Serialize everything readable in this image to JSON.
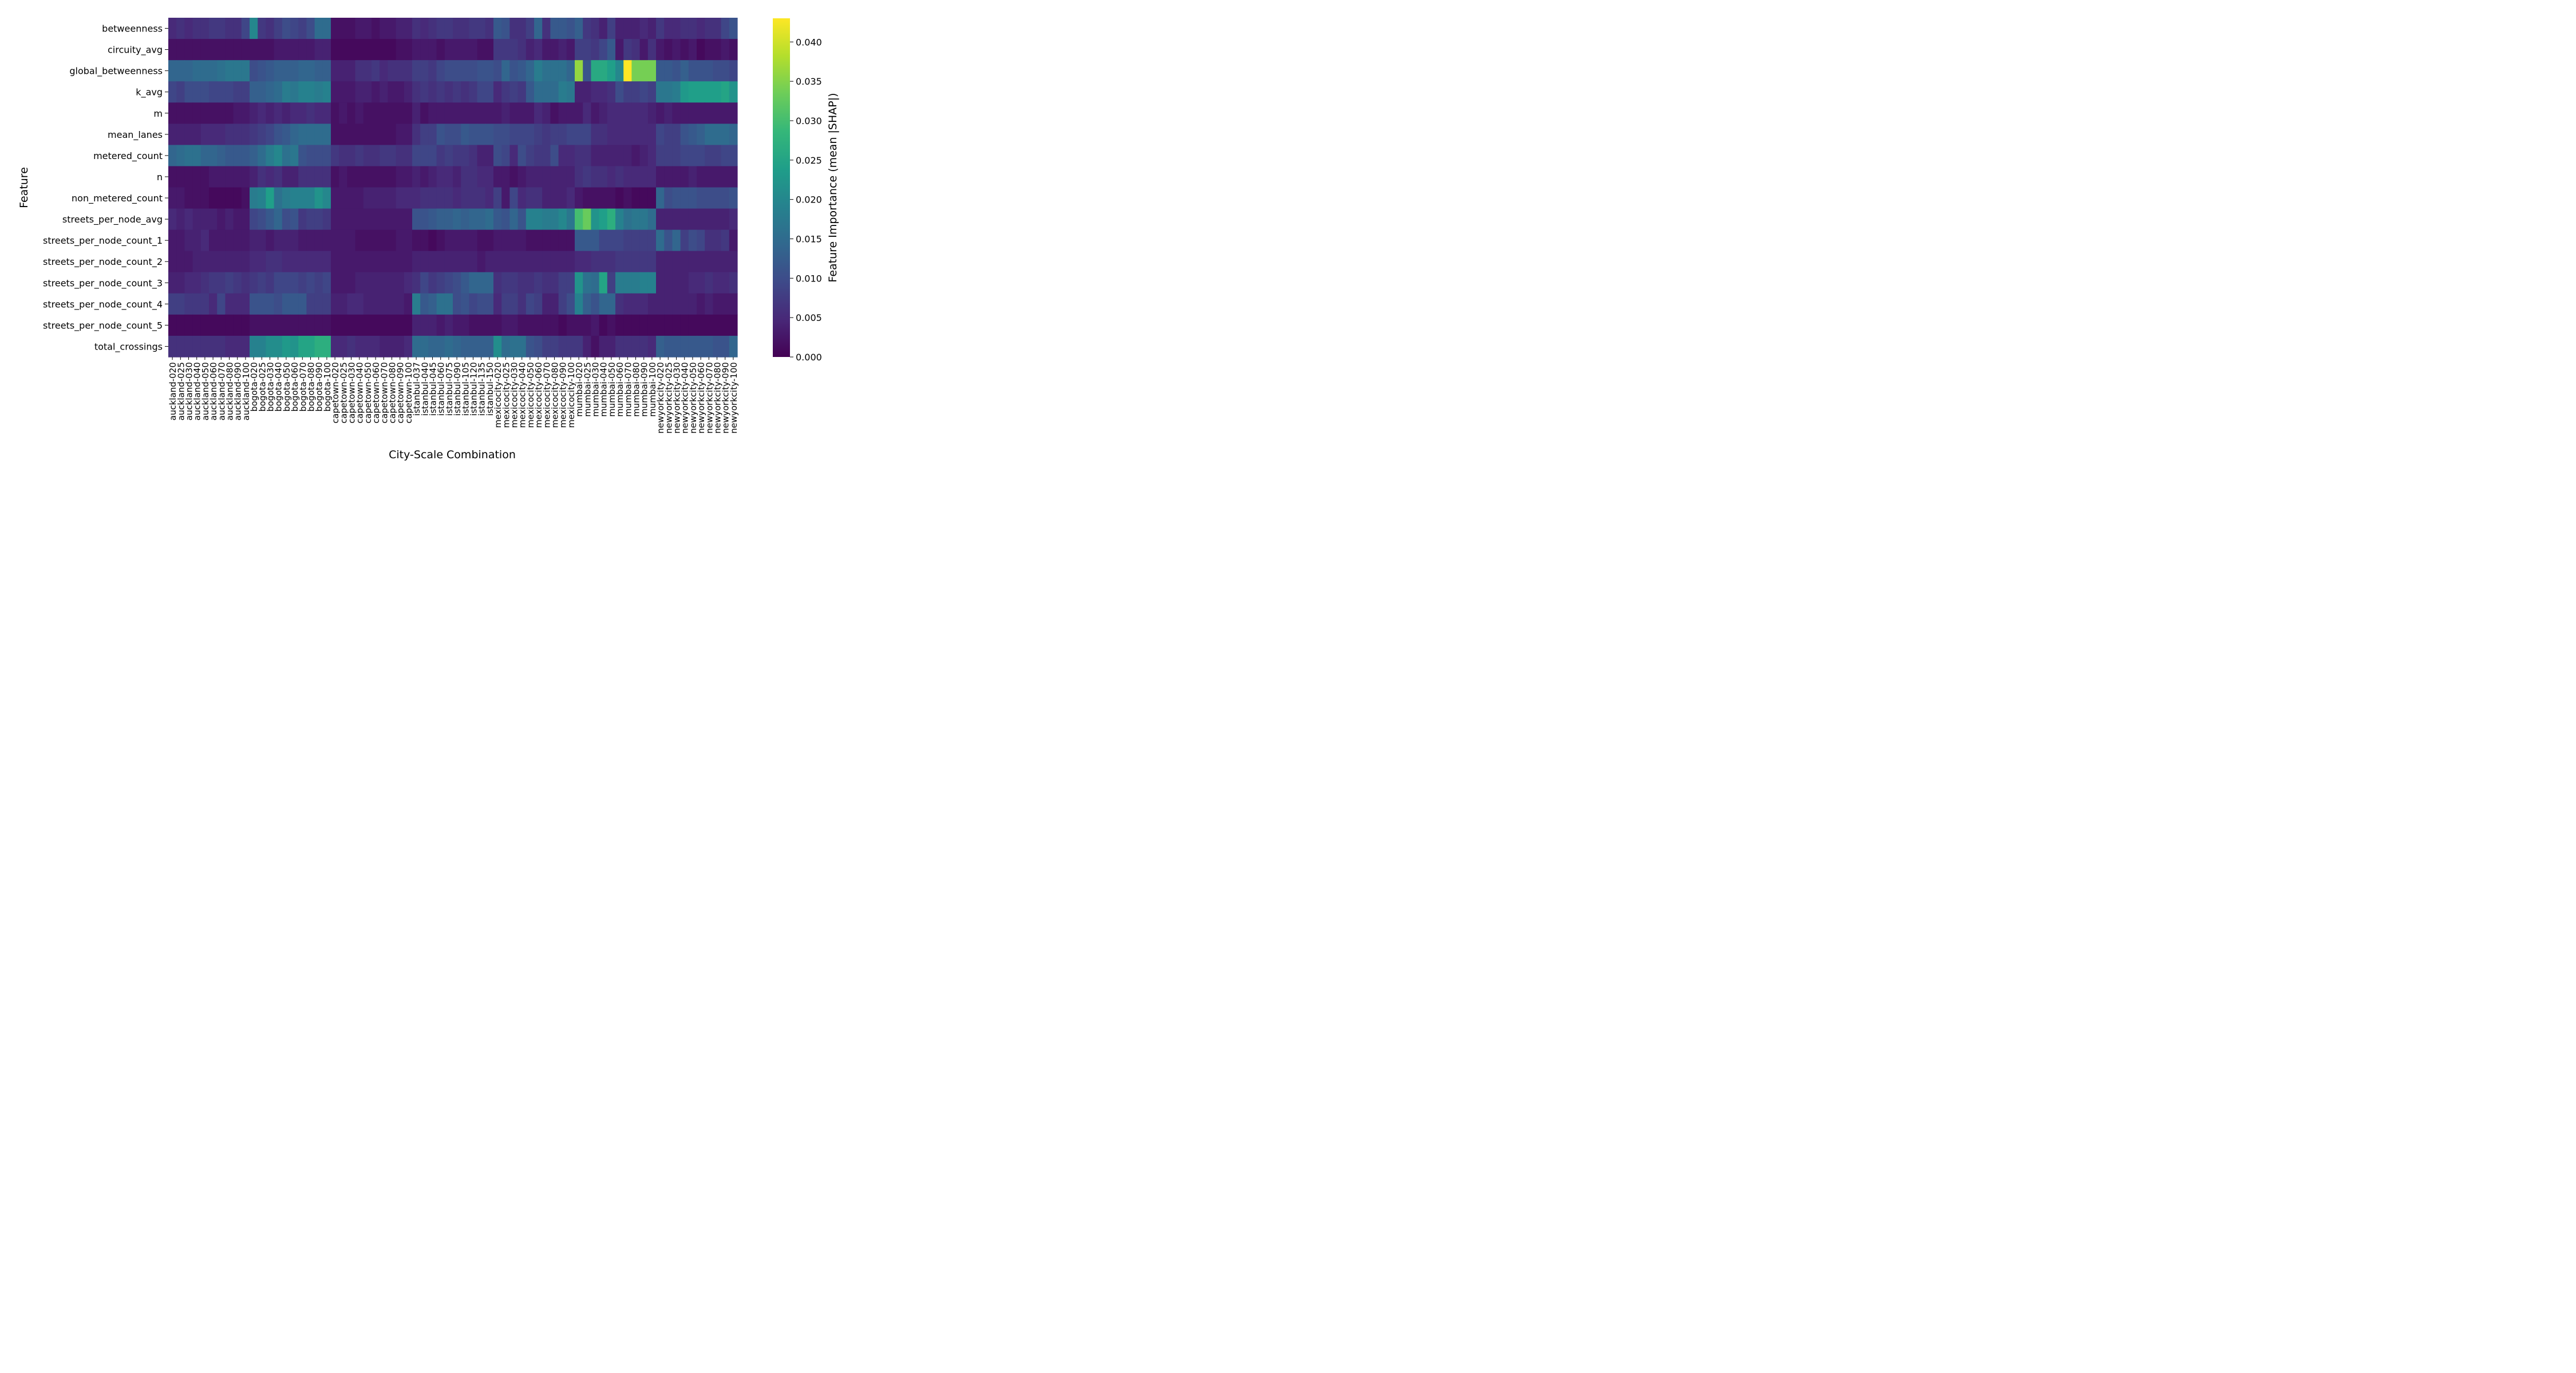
{
  "chart_data": {
    "type": "heatmap",
    "title": "",
    "xlabel": "City-Scale Combination",
    "ylabel": "Feature",
    "colorbar_label": "Feature Importance (mean |SHAP|)",
    "colormap": "viridis",
    "vmin": 0.0,
    "vmax": 0.043,
    "colorbar_ticks": [
      "0.000",
      "0.005",
      "0.010",
      "0.015",
      "0.020",
      "0.025",
      "0.030",
      "0.035",
      "0.040"
    ],
    "rows": [
      "betweenness",
      "circuity_avg",
      "global_betweenness",
      "k_avg",
      "m",
      "mean_lanes",
      "metered_count",
      "n",
      "non_metered_count",
      "streets_per_node_avg",
      "streets_per_node_count_1",
      "streets_per_node_count_2",
      "streets_per_node_count_3",
      "streets_per_node_count_4",
      "streets_per_node_count_5",
      "total_crossings"
    ],
    "columns": [
      "auckland-020",
      "auckland-025",
      "auckland-030",
      "auckland-040",
      "auckland-050",
      "auckland-060",
      "auckland-070",
      "auckland-080",
      "auckland-090",
      "auckland-100",
      "bogota-020",
      "bogota-025",
      "bogota-030",
      "bogota-040",
      "bogota-050",
      "bogota-060",
      "bogota-070",
      "bogota-080",
      "bogota-090",
      "bogota-100",
      "capetown-020",
      "capetown-025",
      "capetown-030",
      "capetown-040",
      "capetown-050",
      "capetown-060",
      "capetown-070",
      "capetown-080",
      "capetown-090",
      "capetown-100",
      "istanbul-037",
      "istanbul-040",
      "istanbul-045",
      "istanbul-060",
      "istanbul-075",
      "istanbul-090",
      "istanbul-105",
      "istanbul-120",
      "istanbul-135",
      "istanbul-150",
      "mexicocity-020",
      "mexicocity-025",
      "mexicocity-030",
      "mexicocity-040",
      "mexicocity-050",
      "mexicocity-060",
      "mexicocity-070",
      "mexicocity-080",
      "mexicocity-090",
      "mexicocity-100",
      "mumbai-020",
      "mumbai-025",
      "mumbai-030",
      "mumbai-040",
      "mumbai-050",
      "mumbai-060",
      "mumbai-070",
      "mumbai-080",
      "mumbai-090",
      "mumbai-100",
      "newyorkcity-020",
      "newyorkcity-025",
      "newyorkcity-030",
      "newyorkcity-040",
      "newyorkcity-050",
      "newyorkcity-060",
      "newyorkcity-070",
      "newyorkcity-080",
      "newyorkcity-090",
      "newyorkcity-100"
    ],
    "values": [
      [
        0.005,
        0.006,
        0.005,
        0.006,
        0.006,
        0.007,
        0.007,
        0.006,
        0.006,
        0.009,
        0.02,
        0.007,
        0.006,
        0.008,
        0.01,
        0.009,
        0.008,
        0.01,
        0.015,
        0.015,
        0.002,
        0.002,
        0.002,
        0.003,
        0.003,
        0.002,
        0.003,
        0.003,
        0.004,
        0.004,
        0.006,
        0.005,
        0.006,
        0.007,
        0.007,
        0.006,
        0.006,
        0.007,
        0.007,
        0.006,
        0.012,
        0.011,
        0.006,
        0.006,
        0.008,
        0.014,
        0.006,
        0.012,
        0.012,
        0.011,
        0.013,
        0.007,
        0.006,
        0.004,
        0.008,
        0.004,
        0.004,
        0.004,
        0.005,
        0.004,
        0.007,
        0.005,
        0.005,
        0.006,
        0.006,
        0.005,
        0.006,
        0.006,
        0.009,
        0.011
      ],
      [
        0.002,
        0.002,
        0.002,
        0.002,
        0.002,
        0.002,
        0.002,
        0.002,
        0.002,
        0.002,
        0.002,
        0.002,
        0.002,
        0.003,
        0.003,
        0.003,
        0.003,
        0.003,
        0.004,
        0.004,
        0.001,
        0.001,
        0.001,
        0.001,
        0.001,
        0.001,
        0.001,
        0.001,
        0.002,
        0.002,
        0.003,
        0.003,
        0.003,
        0.002,
        0.003,
        0.003,
        0.003,
        0.003,
        0.002,
        0.002,
        0.007,
        0.007,
        0.007,
        0.006,
        0.004,
        0.005,
        0.003,
        0.003,
        0.004,
        0.003,
        0.008,
        0.008,
        0.007,
        0.009,
        0.012,
        0.003,
        0.007,
        0.006,
        0.003,
        0.006,
        0.003,
        0.002,
        0.003,
        0.002,
        0.003,
        0.001,
        0.002,
        0.002,
        0.003,
        0.002
      ],
      [
        0.014,
        0.014,
        0.014,
        0.015,
        0.015,
        0.015,
        0.016,
        0.017,
        0.017,
        0.017,
        0.01,
        0.011,
        0.012,
        0.013,
        0.013,
        0.013,
        0.014,
        0.014,
        0.013,
        0.013,
        0.004,
        0.004,
        0.004,
        0.006,
        0.006,
        0.007,
        0.005,
        0.006,
        0.006,
        0.006,
        0.008,
        0.008,
        0.007,
        0.009,
        0.01,
        0.01,
        0.01,
        0.01,
        0.011,
        0.011,
        0.01,
        0.014,
        0.011,
        0.012,
        0.014,
        0.018,
        0.016,
        0.016,
        0.016,
        0.014,
        0.036,
        0.011,
        0.026,
        0.026,
        0.024,
        0.02,
        0.043,
        0.034,
        0.034,
        0.034,
        0.012,
        0.012,
        0.011,
        0.013,
        0.011,
        0.011,
        0.011,
        0.01,
        0.01,
        0.009
      ],
      [
        0.009,
        0.008,
        0.01,
        0.01,
        0.01,
        0.009,
        0.009,
        0.009,
        0.008,
        0.008,
        0.013,
        0.013,
        0.014,
        0.015,
        0.018,
        0.017,
        0.019,
        0.019,
        0.018,
        0.019,
        0.003,
        0.003,
        0.003,
        0.004,
        0.004,
        0.003,
        0.004,
        0.003,
        0.003,
        0.004,
        0.006,
        0.007,
        0.006,
        0.007,
        0.006,
        0.007,
        0.006,
        0.007,
        0.009,
        0.009,
        0.005,
        0.007,
        0.008,
        0.007,
        0.012,
        0.015,
        0.015,
        0.015,
        0.018,
        0.017,
        0.004,
        0.004,
        0.005,
        0.005,
        0.006,
        0.01,
        0.008,
        0.008,
        0.009,
        0.008,
        0.017,
        0.017,
        0.018,
        0.023,
        0.024,
        0.024,
        0.024,
        0.024,
        0.025,
        0.022
      ],
      [
        0.002,
        0.002,
        0.002,
        0.002,
        0.002,
        0.002,
        0.002,
        0.002,
        0.003,
        0.003,
        0.004,
        0.005,
        0.004,
        0.005,
        0.004,
        0.005,
        0.005,
        0.006,
        0.005,
        0.005,
        0.002,
        0.003,
        0.002,
        0.003,
        0.002,
        0.002,
        0.002,
        0.002,
        0.002,
        0.002,
        0.004,
        0.002,
        0.003,
        0.003,
        0.003,
        0.003,
        0.003,
        0.003,
        0.003,
        0.003,
        0.003,
        0.004,
        0.003,
        0.003,
        0.003,
        0.005,
        0.004,
        0.002,
        0.003,
        0.003,
        0.003,
        0.005,
        0.003,
        0.004,
        0.005,
        0.005,
        0.005,
        0.005,
        0.005,
        0.004,
        0.003,
        0.004,
        0.003,
        0.003,
        0.003,
        0.003,
        0.003,
        0.003,
        0.003,
        0.003
      ],
      [
        0.004,
        0.004,
        0.004,
        0.004,
        0.005,
        0.005,
        0.005,
        0.006,
        0.006,
        0.006,
        0.007,
        0.008,
        0.009,
        0.011,
        0.012,
        0.014,
        0.015,
        0.015,
        0.015,
        0.015,
        0.002,
        0.002,
        0.002,
        0.002,
        0.002,
        0.002,
        0.002,
        0.002,
        0.003,
        0.003,
        0.006,
        0.008,
        0.008,
        0.011,
        0.01,
        0.01,
        0.012,
        0.011,
        0.011,
        0.011,
        0.01,
        0.01,
        0.009,
        0.009,
        0.009,
        0.008,
        0.007,
        0.008,
        0.008,
        0.009,
        0.009,
        0.009,
        0.006,
        0.006,
        0.005,
        0.005,
        0.005,
        0.005,
        0.005,
        0.005,
        0.009,
        0.008,
        0.008,
        0.011,
        0.012,
        0.013,
        0.015,
        0.015,
        0.015,
        0.014
      ],
      [
        0.014,
        0.015,
        0.016,
        0.016,
        0.014,
        0.014,
        0.013,
        0.012,
        0.012,
        0.012,
        0.013,
        0.015,
        0.018,
        0.02,
        0.016,
        0.017,
        0.011,
        0.01,
        0.01,
        0.01,
        0.007,
        0.006,
        0.006,
        0.007,
        0.006,
        0.006,
        0.007,
        0.007,
        0.006,
        0.006,
        0.009,
        0.009,
        0.009,
        0.007,
        0.008,
        0.007,
        0.007,
        0.006,
        0.004,
        0.004,
        0.01,
        0.009,
        0.005,
        0.01,
        0.008,
        0.007,
        0.007,
        0.01,
        0.005,
        0.005,
        0.006,
        0.006,
        0.004,
        0.004,
        0.004,
        0.004,
        0.004,
        0.003,
        0.004,
        0.005,
        0.008,
        0.008,
        0.008,
        0.009,
        0.009,
        0.009,
        0.008,
        0.008,
        0.009,
        0.009
      ],
      [
        0.002,
        0.002,
        0.002,
        0.002,
        0.002,
        0.003,
        0.003,
        0.003,
        0.003,
        0.003,
        0.004,
        0.006,
        0.005,
        0.006,
        0.004,
        0.004,
        0.006,
        0.006,
        0.006,
        0.006,
        0.002,
        0.003,
        0.002,
        0.002,
        0.002,
        0.002,
        0.002,
        0.002,
        0.003,
        0.003,
        0.004,
        0.003,
        0.004,
        0.005,
        0.005,
        0.004,
        0.006,
        0.006,
        0.005,
        0.005,
        0.003,
        0.003,
        0.002,
        0.003,
        0.004,
        0.004,
        0.004,
        0.004,
        0.004,
        0.004,
        0.006,
        0.007,
        0.006,
        0.006,
        0.005,
        0.006,
        0.005,
        0.005,
        0.005,
        0.005,
        0.003,
        0.003,
        0.003,
        0.003,
        0.004,
        0.003,
        0.003,
        0.003,
        0.003,
        0.003
      ],
      [
        0.003,
        0.003,
        0.002,
        0.002,
        0.002,
        0.001,
        0.001,
        0.001,
        0.001,
        0.002,
        0.018,
        0.019,
        0.024,
        0.016,
        0.018,
        0.019,
        0.019,
        0.019,
        0.022,
        0.02,
        0.003,
        0.003,
        0.003,
        0.003,
        0.004,
        0.004,
        0.004,
        0.004,
        0.005,
        0.005,
        0.005,
        0.006,
        0.006,
        0.006,
        0.006,
        0.005,
        0.006,
        0.006,
        0.006,
        0.005,
        0.008,
        0.003,
        0.009,
        0.005,
        0.006,
        0.006,
        0.004,
        0.004,
        0.004,
        0.005,
        0.003,
        0.002,
        0.002,
        0.002,
        0.002,
        0.001,
        0.002,
        0.001,
        0.001,
        0.001,
        0.014,
        0.01,
        0.011,
        0.011,
        0.011,
        0.01,
        0.01,
        0.01,
        0.01,
        0.011
      ],
      [
        0.005,
        0.004,
        0.005,
        0.004,
        0.004,
        0.004,
        0.003,
        0.004,
        0.003,
        0.003,
        0.009,
        0.01,
        0.012,
        0.014,
        0.01,
        0.011,
        0.007,
        0.008,
        0.008,
        0.007,
        0.003,
        0.003,
        0.003,
        0.003,
        0.003,
        0.003,
        0.003,
        0.003,
        0.003,
        0.003,
        0.011,
        0.011,
        0.012,
        0.013,
        0.013,
        0.014,
        0.013,
        0.014,
        0.014,
        0.015,
        0.012,
        0.011,
        0.014,
        0.011,
        0.019,
        0.019,
        0.018,
        0.018,
        0.02,
        0.017,
        0.03,
        0.033,
        0.022,
        0.024,
        0.027,
        0.019,
        0.016,
        0.017,
        0.017,
        0.015,
        0.004,
        0.004,
        0.004,
        0.004,
        0.004,
        0.004,
        0.004,
        0.004,
        0.004,
        0.005
      ],
      [
        0.003,
        0.003,
        0.004,
        0.004,
        0.005,
        0.003,
        0.003,
        0.003,
        0.003,
        0.003,
        0.004,
        0.004,
        0.003,
        0.004,
        0.004,
        0.004,
        0.003,
        0.003,
        0.003,
        0.003,
        0.003,
        0.003,
        0.003,
        0.002,
        0.002,
        0.002,
        0.002,
        0.002,
        0.003,
        0.003,
        0.002,
        0.002,
        0.001,
        0.002,
        0.003,
        0.003,
        0.003,
        0.003,
        0.002,
        0.002,
        0.003,
        0.003,
        0.003,
        0.003,
        0.002,
        0.002,
        0.002,
        0.002,
        0.002,
        0.002,
        0.012,
        0.012,
        0.012,
        0.009,
        0.009,
        0.009,
        0.008,
        0.008,
        0.008,
        0.008,
        0.015,
        0.011,
        0.014,
        0.008,
        0.01,
        0.009,
        0.006,
        0.006,
        0.007,
        0.003
      ],
      [
        0.003,
        0.003,
        0.003,
        0.004,
        0.004,
        0.004,
        0.004,
        0.004,
        0.004,
        0.004,
        0.005,
        0.005,
        0.006,
        0.006,
        0.005,
        0.005,
        0.005,
        0.005,
        0.005,
        0.005,
        0.003,
        0.003,
        0.003,
        0.003,
        0.003,
        0.003,
        0.003,
        0.003,
        0.003,
        0.003,
        0.004,
        0.004,
        0.004,
        0.004,
        0.004,
        0.004,
        0.004,
        0.004,
        0.003,
        0.004,
        0.004,
        0.004,
        0.004,
        0.004,
        0.004,
        0.004,
        0.004,
        0.004,
        0.004,
        0.004,
        0.005,
        0.005,
        0.006,
        0.006,
        0.006,
        0.007,
        0.007,
        0.007,
        0.007,
        0.007,
        0.004,
        0.004,
        0.004,
        0.004,
        0.004,
        0.004,
        0.004,
        0.004,
        0.004,
        0.004
      ],
      [
        0.004,
        0.004,
        0.005,
        0.005,
        0.006,
        0.007,
        0.007,
        0.008,
        0.007,
        0.006,
        0.007,
        0.008,
        0.007,
        0.009,
        0.009,
        0.009,
        0.008,
        0.009,
        0.008,
        0.009,
        0.003,
        0.003,
        0.003,
        0.004,
        0.004,
        0.004,
        0.004,
        0.004,
        0.004,
        0.005,
        0.006,
        0.009,
        0.007,
        0.008,
        0.009,
        0.01,
        0.012,
        0.014,
        0.014,
        0.014,
        0.006,
        0.007,
        0.007,
        0.006,
        0.006,
        0.007,
        0.006,
        0.006,
        0.008,
        0.008,
        0.022,
        0.016,
        0.015,
        0.025,
        0.008,
        0.018,
        0.018,
        0.018,
        0.019,
        0.019,
        0.004,
        0.004,
        0.004,
        0.004,
        0.005,
        0.005,
        0.006,
        0.005,
        0.005,
        0.006
      ],
      [
        0.008,
        0.008,
        0.007,
        0.007,
        0.007,
        0.005,
        0.009,
        0.005,
        0.005,
        0.005,
        0.011,
        0.011,
        0.011,
        0.01,
        0.012,
        0.012,
        0.012,
        0.008,
        0.008,
        0.008,
        0.004,
        0.004,
        0.005,
        0.005,
        0.004,
        0.004,
        0.004,
        0.004,
        0.004,
        0.003,
        0.018,
        0.012,
        0.013,
        0.016,
        0.016,
        0.01,
        0.011,
        0.009,
        0.01,
        0.01,
        0.005,
        0.008,
        0.008,
        0.006,
        0.009,
        0.008,
        0.004,
        0.004,
        0.008,
        0.01,
        0.019,
        0.013,
        0.011,
        0.014,
        0.014,
        0.006,
        0.005,
        0.005,
        0.005,
        0.004,
        0.004,
        0.004,
        0.004,
        0.004,
        0.004,
        0.003,
        0.004,
        0.003,
        0.003,
        0.003
      ],
      [
        0.001,
        0.001,
        0.001,
        0.001,
        0.001,
        0.001,
        0.001,
        0.001,
        0.001,
        0.001,
        0.002,
        0.002,
        0.002,
        0.002,
        0.002,
        0.002,
        0.002,
        0.002,
        0.002,
        0.002,
        0.001,
        0.001,
        0.001,
        0.001,
        0.001,
        0.001,
        0.001,
        0.001,
        0.001,
        0.001,
        0.004,
        0.004,
        0.004,
        0.003,
        0.004,
        0.003,
        0.003,
        0.002,
        0.002,
        0.002,
        0.002,
        0.003,
        0.003,
        0.002,
        0.002,
        0.002,
        0.002,
        0.002,
        0.001,
        0.002,
        0.002,
        0.002,
        0.003,
        0.001,
        0.002,
        0.001,
        0.001,
        0.001,
        0.001,
        0.001,
        0.001,
        0.001,
        0.001,
        0.001,
        0.001,
        0.001,
        0.001,
        0.001,
        0.001,
        0.001
      ],
      [
        0.006,
        0.006,
        0.006,
        0.006,
        0.006,
        0.006,
        0.006,
        0.005,
        0.005,
        0.005,
        0.019,
        0.019,
        0.021,
        0.021,
        0.023,
        0.022,
        0.025,
        0.025,
        0.027,
        0.027,
        0.005,
        0.005,
        0.006,
        0.005,
        0.005,
        0.005,
        0.004,
        0.004,
        0.004,
        0.005,
        0.015,
        0.015,
        0.014,
        0.014,
        0.015,
        0.014,
        0.013,
        0.013,
        0.013,
        0.013,
        0.021,
        0.015,
        0.016,
        0.016,
        0.011,
        0.01,
        0.008,
        0.008,
        0.007,
        0.007,
        0.007,
        0.004,
        0.002,
        0.004,
        0.004,
        0.006,
        0.006,
        0.006,
        0.006,
        0.005,
        0.013,
        0.012,
        0.012,
        0.012,
        0.012,
        0.012,
        0.012,
        0.011,
        0.011,
        0.014
      ]
    ]
  }
}
